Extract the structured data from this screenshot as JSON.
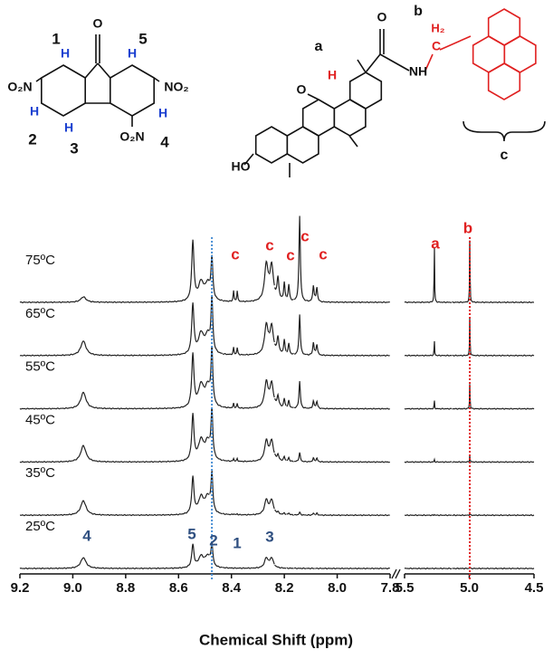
{
  "structures": {
    "left": [
      "O",
      "1",
      "5",
      "H",
      "H",
      "O₂N",
      "NO₂",
      "H",
      "H",
      "H",
      "O₂N",
      "2",
      "3",
      "4"
    ],
    "right": [
      "a",
      "b",
      "c",
      "O",
      "O",
      "NH",
      "H₂",
      "C",
      "H",
      "HO"
    ]
  },
  "chart_data": {
    "type": "line",
    "xlabel": "Chemical Shift (ppm)",
    "x": [
      8.96,
      8.546,
      8.515,
      8.49,
      8.474,
      8.392,
      8.378,
      8.268,
      8.248,
      8.224,
      8.2,
      8.183,
      8.142,
      8.09,
      8.077,
      5.27,
      4.996
    ],
    "linewidths": [
      0.012,
      0.005,
      0.012,
      0.012,
      0.004,
      0.002,
      0.002,
      0.008,
      0.008,
      0.004,
      0.003,
      0.003,
      0.003,
      0.003,
      0.003,
      0.002,
      0.002
    ],
    "series": [
      {
        "name": "25ºC",
        "color": "#222222",
        "values": [
          12,
          25,
          12,
          12,
          24,
          0,
          0,
          11,
          11,
          0,
          0,
          0,
          0,
          0,
          0,
          0,
          1
        ]
      },
      {
        "name": "35ºC",
        "color": "#222222",
        "values": [
          16,
          40,
          18,
          18,
          42,
          1,
          1,
          16,
          16,
          2,
          2,
          2,
          3,
          2,
          2,
          1,
          3
        ]
      },
      {
        "name": "45ºC",
        "color": "#222222",
        "values": [
          18,
          50,
          22,
          20,
          52,
          3,
          3,
          22,
          22,
          6,
          5,
          4,
          10,
          4,
          4,
          3,
          8
        ]
      },
      {
        "name": "55ºC",
        "color": "#222222",
        "values": [
          18,
          58,
          24,
          22,
          60,
          5,
          5,
          28,
          26,
          12,
          10,
          8,
          30,
          8,
          8,
          10,
          30
        ]
      },
      {
        "name": "65ºC",
        "color": "#222222",
        "values": [
          16,
          55,
          22,
          20,
          58,
          8,
          8,
          32,
          30,
          18,
          16,
          12,
          45,
          14,
          12,
          18,
          45
        ]
      },
      {
        "name": "75ºC",
        "color": "#222222",
        "values": [
          6,
          66,
          20,
          18,
          45,
          12,
          12,
          40,
          38,
          24,
          20,
          18,
          95,
          18,
          16,
          70,
          75
        ]
      }
    ],
    "xlim": [
      9.2,
      7.8
    ],
    "xticks": [
      9.2,
      {
        "value": 9,
        "label": "9.0"
      },
      8.8,
      8.6,
      8.4,
      8.2,
      {
        "value": 8,
        "label": "8.0"
      },
      7.8
    ],
    "x2lim": [
      5.5,
      4.5
    ],
    "x2ticks": [
      5.5,
      {
        "value": 5,
        "label": "5.0"
      },
      4.5
    ],
    "annotations": [
      {
        "text": "4",
        "color": "#2f4f80"
      },
      {
        "text": "5",
        "color": "#2f4f80"
      },
      {
        "text": "2",
        "color": "#2f4f80"
      },
      {
        "text": "1",
        "color": "#2f4f80"
      },
      {
        "text": "3",
        "color": "#2f4f80"
      },
      {
        "text": "a",
        "color": "#e02020"
      },
      {
        "text": "b",
        "color": "#e02020"
      },
      {
        "text": "c",
        "color": "#e02020"
      },
      {
        "text": "c",
        "color": "#e02020"
      },
      {
        "text": "c",
        "color": "#e02020"
      },
      {
        "text": "c",
        "color": "#e02020"
      },
      {
        "text": "c",
        "color": "#e02020"
      }
    ]
  }
}
